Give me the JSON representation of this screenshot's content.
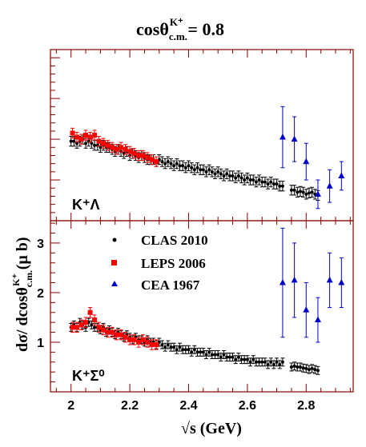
{
  "title": {
    "base": "cosθ",
    "sub": "c.m.",
    "sup": "K⁺",
    "value": " = 0.8"
  },
  "xlabel": "√s (GeV)",
  "ylabel": {
    "base": "dσ/ dcosθ",
    "sub": "c.m.",
    "sup": "K⁺",
    "tail": " (μ b)"
  },
  "legend": [
    "CLAS 2010",
    "LEPS 2006",
    "CEA 1967"
  ],
  "colors": {
    "clas": "#000000",
    "leps": "#ff0000",
    "cea": "#0000cc",
    "frame": "#8b0000"
  },
  "chart_data": [
    {
      "type": "scatter",
      "panel": "top",
      "label": "K⁺Λ",
      "xlim": [
        1.93,
        2.96
      ],
      "ylim": [
        0,
        4.2
      ],
      "yticks_labeled": [],
      "series": [
        {
          "name": "CLAS 2010",
          "marker": "circle",
          "x": [
            2.0,
            2.01,
            2.02,
            2.03,
            2.04,
            2.05,
            2.06,
            2.07,
            2.08,
            2.09,
            2.1,
            2.11,
            2.12,
            2.13,
            2.14,
            2.15,
            2.16,
            2.17,
            2.18,
            2.19,
            2.2,
            2.21,
            2.22,
            2.23,
            2.24,
            2.25,
            2.26,
            2.27,
            2.28,
            2.29,
            2.3,
            2.31,
            2.32,
            2.33,
            2.34,
            2.35,
            2.36,
            2.37,
            2.38,
            2.39,
            2.4,
            2.41,
            2.42,
            2.43,
            2.44,
            2.45,
            2.46,
            2.47,
            2.48,
            2.49,
            2.5,
            2.51,
            2.52,
            2.53,
            2.54,
            2.55,
            2.56,
            2.57,
            2.58,
            2.59,
            2.6,
            2.61,
            2.62,
            2.63,
            2.64,
            2.65,
            2.66,
            2.67,
            2.68,
            2.69,
            2.7,
            2.71,
            2.72,
            2.75,
            2.76,
            2.77,
            2.78,
            2.79,
            2.8,
            2.81,
            2.82,
            2.83,
            2.84
          ],
          "y": [
            1.95,
            1.95,
            1.9,
            1.95,
            2.0,
            1.9,
            1.95,
            1.9,
            1.85,
            1.85,
            1.8,
            1.85,
            1.8,
            1.8,
            1.75,
            1.7,
            1.75,
            1.7,
            1.65,
            1.7,
            1.6,
            1.65,
            1.6,
            1.55,
            1.6,
            1.55,
            1.5,
            1.5,
            1.5,
            1.45,
            1.5,
            1.45,
            1.4,
            1.45,
            1.4,
            1.35,
            1.4,
            1.35,
            1.35,
            1.3,
            1.35,
            1.3,
            1.25,
            1.3,
            1.25,
            1.25,
            1.2,
            1.25,
            1.2,
            1.15,
            1.2,
            1.15,
            1.1,
            1.15,
            1.1,
            1.1,
            1.05,
            1.1,
            1.05,
            1.0,
            1.05,
            1.0,
            1.0,
            0.95,
            1.0,
            0.95,
            0.95,
            0.9,
            0.95,
            0.9,
            0.9,
            0.85,
            0.85,
            0.75,
            0.75,
            0.7,
            0.72,
            0.7,
            0.65,
            0.68,
            0.7,
            0.65,
            0.62
          ],
          "err": 0.12
        },
        {
          "name": "LEPS 2006",
          "marker": "square",
          "x": [
            2.005,
            2.02,
            2.035,
            2.05,
            2.065,
            2.08,
            2.095,
            2.11,
            2.125,
            2.14,
            2.155,
            2.17,
            2.185,
            2.2,
            2.215,
            2.23,
            2.245,
            2.26,
            2.275,
            2.29
          ],
          "y": [
            2.15,
            2.05,
            2.0,
            2.1,
            2.05,
            2.1,
            1.95,
            1.9,
            1.85,
            1.8,
            1.75,
            1.8,
            1.75,
            1.7,
            1.65,
            1.6,
            1.6,
            1.55,
            1.5,
            1.45
          ],
          "err": 0.12
        },
        {
          "name": "CEA 1967",
          "marker": "triangle",
          "x": [
            2.72,
            2.76,
            2.8,
            2.84,
            2.88,
            2.92
          ],
          "y": [
            2.05,
            2.0,
            1.45,
            0.65,
            0.85,
            1.1
          ],
          "err": [
            0.75,
            0.55,
            0.45,
            0.35,
            0.4,
            0.35
          ]
        }
      ]
    },
    {
      "type": "scatter",
      "panel": "bottom",
      "label": "K⁺Σ⁰",
      "xlim": [
        1.93,
        2.96
      ],
      "ylim": [
        0,
        3.45
      ],
      "yticks_labeled": [
        "1",
        "2",
        "3"
      ],
      "xticks_labeled": [
        "2",
        "2.2",
        "2.4",
        "2.6",
        "2.8"
      ],
      "series": [
        {
          "name": "CLAS 2010",
          "marker": "circle",
          "x": [
            2.0,
            2.01,
            2.02,
            2.03,
            2.04,
            2.05,
            2.06,
            2.07,
            2.08,
            2.09,
            2.1,
            2.11,
            2.12,
            2.13,
            2.14,
            2.15,
            2.16,
            2.17,
            2.18,
            2.19,
            2.2,
            2.21,
            2.22,
            2.23,
            2.24,
            2.25,
            2.26,
            2.27,
            2.28,
            2.29,
            2.3,
            2.31,
            2.32,
            2.33,
            2.34,
            2.35,
            2.36,
            2.37,
            2.38,
            2.39,
            2.4,
            2.41,
            2.42,
            2.43,
            2.44,
            2.45,
            2.46,
            2.47,
            2.48,
            2.49,
            2.5,
            2.51,
            2.52,
            2.53,
            2.54,
            2.55,
            2.56,
            2.57,
            2.58,
            2.59,
            2.6,
            2.61,
            2.62,
            2.63,
            2.64,
            2.65,
            2.66,
            2.67,
            2.68,
            2.69,
            2.7,
            2.71,
            2.72,
            2.75,
            2.76,
            2.77,
            2.78,
            2.79,
            2.8,
            2.81,
            2.82,
            2.83,
            2.84
          ],
          "y": [
            1.3,
            1.35,
            1.3,
            1.4,
            1.35,
            1.3,
            1.4,
            1.35,
            1.3,
            1.3,
            1.25,
            1.3,
            1.2,
            1.25,
            1.2,
            1.15,
            1.2,
            1.15,
            1.1,
            1.15,
            1.1,
            1.05,
            1.1,
            1.05,
            1.05,
            1.0,
            1.05,
            1.0,
            1.0,
            0.95,
            1.0,
            0.95,
            0.9,
            0.95,
            0.9,
            0.9,
            0.85,
            0.9,
            0.85,
            0.85,
            0.85,
            0.8,
            0.85,
            0.8,
            0.8,
            0.8,
            0.75,
            0.8,
            0.75,
            0.75,
            0.75,
            0.7,
            0.75,
            0.7,
            0.7,
            0.7,
            0.65,
            0.7,
            0.65,
            0.65,
            0.65,
            0.6,
            0.65,
            0.6,
            0.6,
            0.6,
            0.6,
            0.55,
            0.6,
            0.55,
            0.6,
            0.55,
            0.6,
            0.5,
            0.52,
            0.5,
            0.5,
            0.48,
            0.47,
            0.45,
            0.47,
            0.45,
            0.43
          ],
          "err": 0.08
        },
        {
          "name": "LEPS 2006",
          "marker": "square",
          "x": [
            2.005,
            2.02,
            2.035,
            2.05,
            2.065,
            2.08,
            2.095,
            2.11,
            2.125,
            2.14,
            2.155,
            2.17,
            2.185,
            2.2,
            2.215,
            2.23,
            2.245,
            2.26,
            2.275,
            2.29
          ],
          "y": [
            1.3,
            1.3,
            1.35,
            1.4,
            1.6,
            1.45,
            1.3,
            1.25,
            1.2,
            1.2,
            1.15,
            1.15,
            1.1,
            1.05,
            1.05,
            1.0,
            1.05,
            1.0,
            0.95,
            0.95
          ],
          "err": 0.1
        },
        {
          "name": "CEA 1967",
          "marker": "triangle",
          "x": [
            2.72,
            2.76,
            2.8,
            2.84,
            2.88,
            2.92
          ],
          "y": [
            2.2,
            2.25,
            1.65,
            1.45,
            2.25,
            2.2
          ],
          "err": [
            1.1,
            0.75,
            0.55,
            0.45,
            0.55,
            0.5
          ]
        }
      ]
    }
  ]
}
